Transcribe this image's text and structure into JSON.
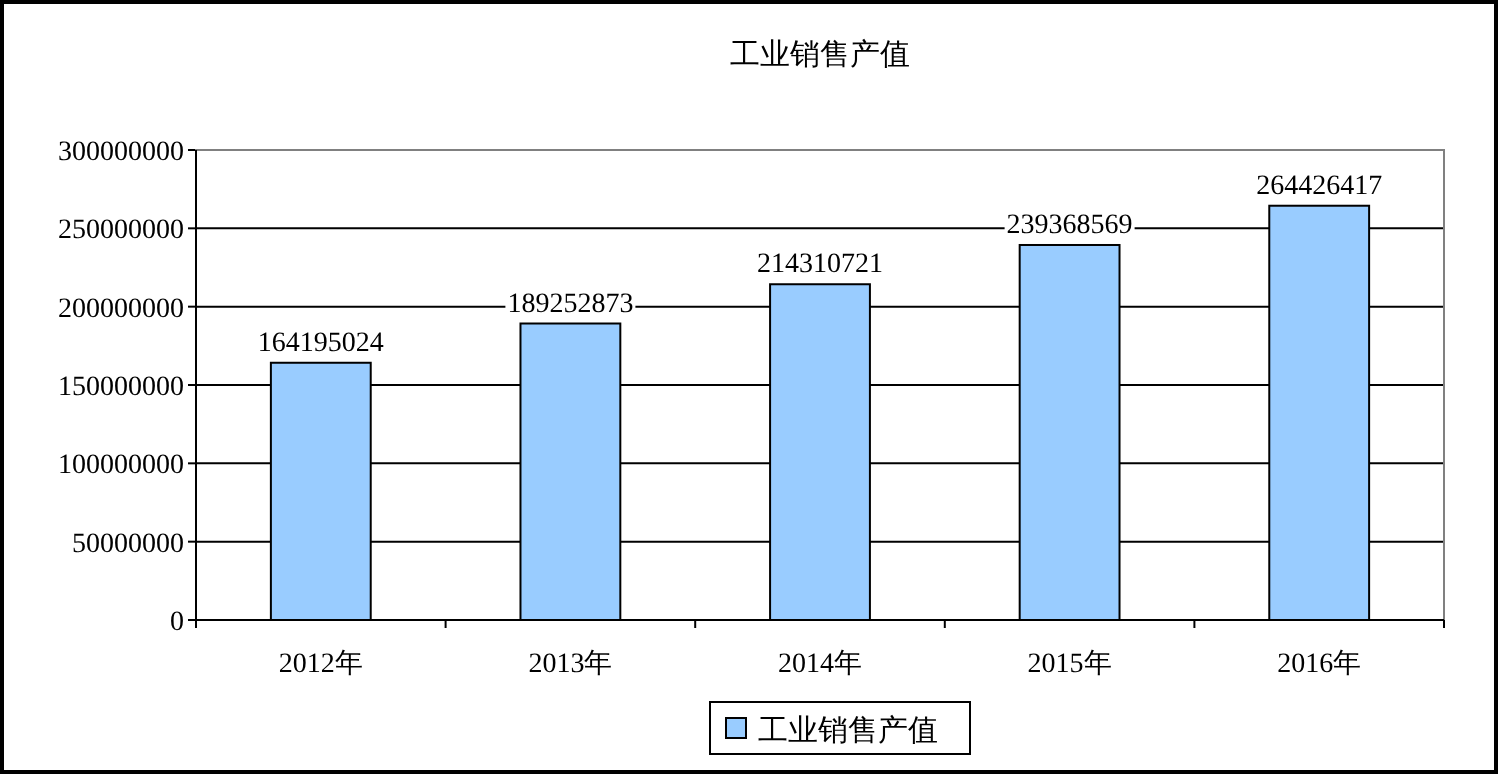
{
  "chart_data": {
    "type": "bar",
    "title": "工业销售产值",
    "categories": [
      "2012年",
      "2013年",
      "2014年",
      "2015年",
      "2016年"
    ],
    "series": [
      {
        "name": "工业销售产值",
        "color": "#99ccff",
        "values": [
          164195024,
          189252873,
          214310721,
          239368569,
          264426417
        ]
      }
    ],
    "ylim": [
      0,
      300000000
    ],
    "yticks": [
      0,
      50000000,
      100000000,
      150000000,
      200000000,
      250000000,
      300000000
    ],
    "grid": "y",
    "data_labels": true,
    "legend": "bottom"
  }
}
